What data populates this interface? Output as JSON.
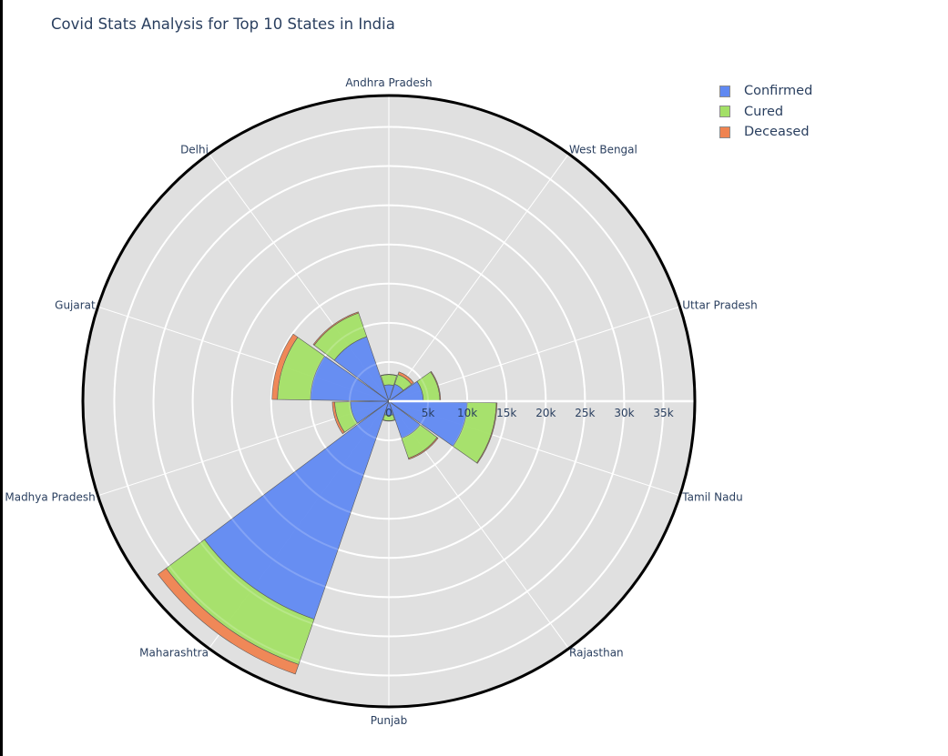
{
  "title": "Covid Stats Analysis for Top 10 States in India",
  "legend": {
    "items": [
      {
        "label": "Confirmed",
        "color": "#636efa"
      },
      {
        "label": "Cured",
        "color": "#a3e066"
      },
      {
        "label": "Deceased",
        "color": "#ef8350"
      }
    ]
  },
  "colors": {
    "background": "#e0e0e0",
    "grid": "#ffffff",
    "outline": "#000000",
    "text": "#2a3f5f",
    "confirmed": "#6089f2",
    "cured": "#a3e066",
    "deceased": "#ef8350"
  },
  "chart_data": {
    "type": "bar",
    "subtype": "polar-barpolar-stacked",
    "title": "Covid Stats Analysis for Top 10 States in India",
    "categories": [
      "Andhra Pradesh",
      "West Bengal",
      "Uttar Pradesh",
      "Tamil Nadu",
      "Rajasthan",
      "Punjab",
      "Maharashtra",
      "Madhya Pradesh",
      "Gujarat",
      "Delhi"
    ],
    "series": [
      {
        "name": "Confirmed",
        "values": [
          2100,
          2300,
          4400,
          10000,
          5000,
          1800,
          29400,
          4900,
          10000,
          8700
        ]
      },
      {
        "name": "Cured",
        "values": [
          1300,
          1300,
          2100,
          3700,
          2700,
          700,
          6100,
          2000,
          4200,
          3200
        ]
      },
      {
        "name": "Deceased",
        "values": [
          50,
          350,
          100,
          100,
          150,
          50,
          1300,
          300,
          700,
          150
        ]
      }
    ],
    "radial_axis": {
      "tick_labels": [
        "0",
        "5k",
        "10k",
        "15k",
        "20k",
        "25k",
        "30k",
        "35k"
      ],
      "tick_values": [
        0,
        5000,
        10000,
        15000,
        20000,
        25000,
        30000,
        35000
      ],
      "range": [
        0,
        39000
      ]
    },
    "angular_axis": {
      "direction": "clockwise",
      "rotation": 90
    },
    "legend_position": "top-right",
    "grid": true
  }
}
